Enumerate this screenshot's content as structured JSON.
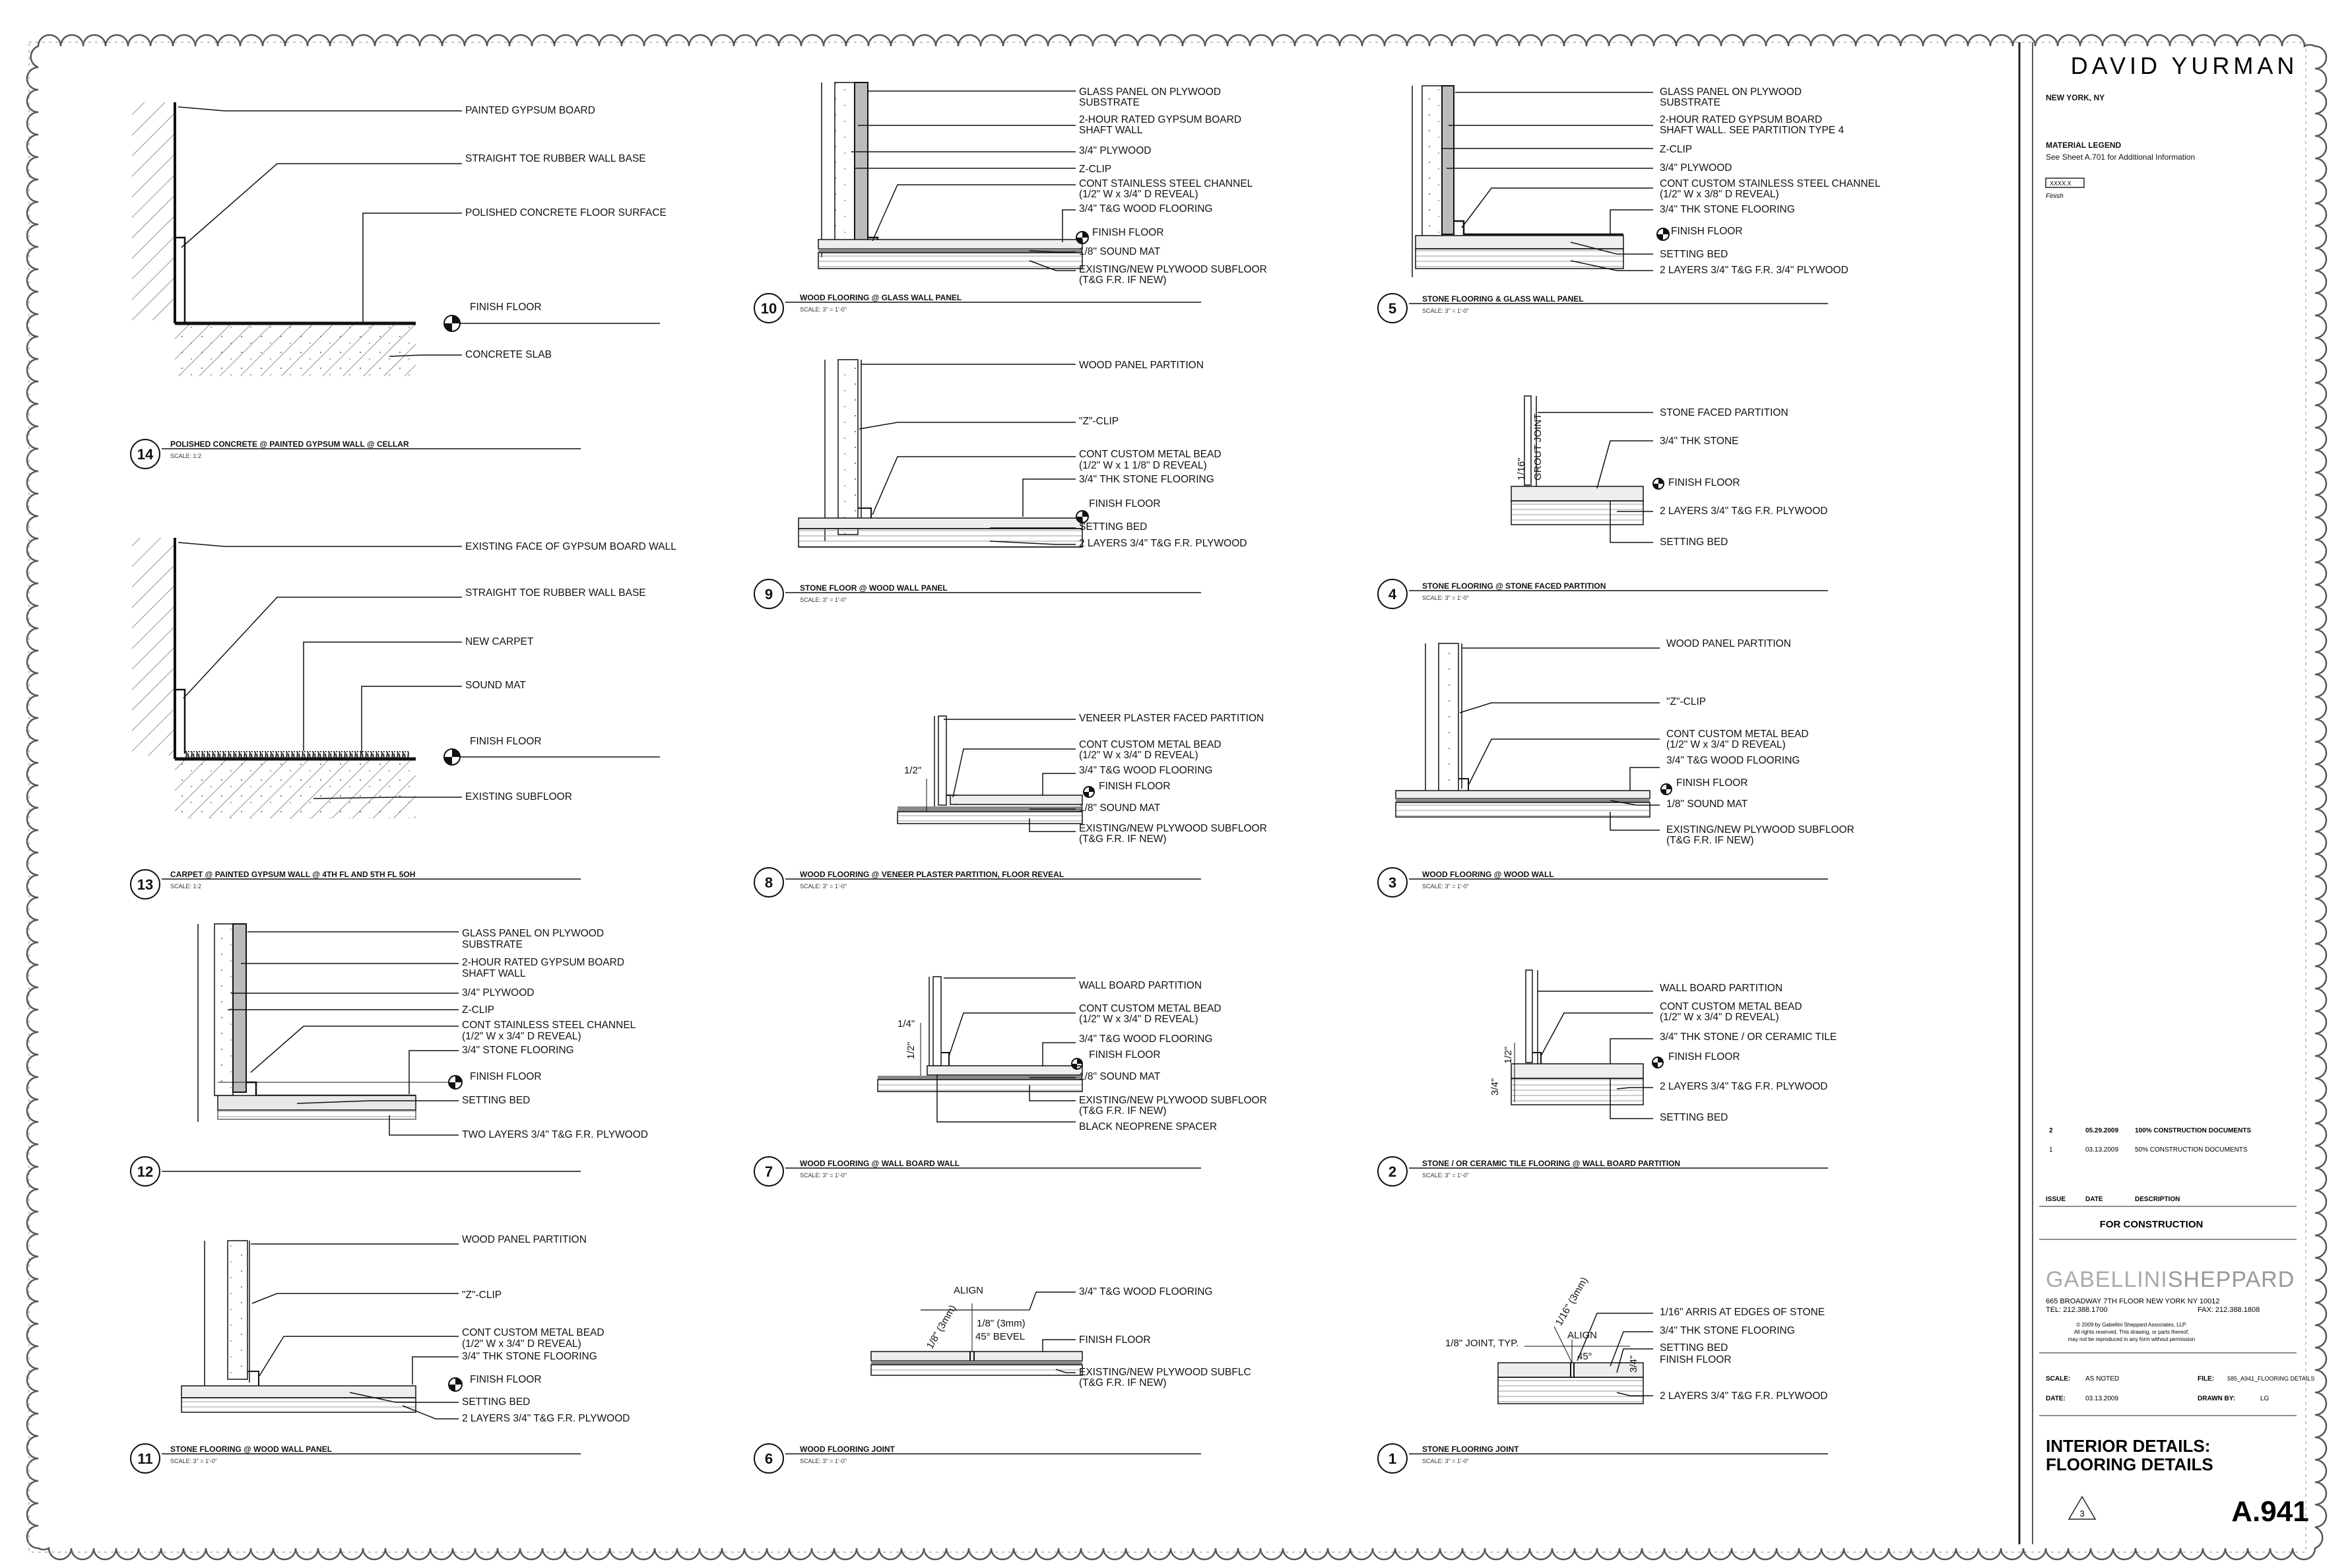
{
  "title_block": {
    "client": "DAVID YURMAN",
    "location": "NEW YORK, NY",
    "legend_title": "MATERIAL LEGEND",
    "legend_note": "See Sheet A.701 for Additional Information",
    "legend_tag": "XXXX.X",
    "legend_tag_caption": "Finish",
    "issues": [
      {
        "no": "2",
        "date": "05.29.2009",
        "desc": "100% CONSTRUCTION DOCUMENTS"
      },
      {
        "no": "1",
        "date": "03.13.2009",
        "desc": "50% CONSTRUCTION DOCUMENTS"
      }
    ],
    "issue_hdr": "ISSUE",
    "date_hdr": "DATE",
    "desc_hdr": "DESCRIPTION",
    "status": "FOR CONSTRUCTION",
    "firm_a": "GABELLINI",
    "firm_b": "SHEPPARD",
    "firm_addr": "665 BROADWAY  7TH FLOOR NEW YORK NY 10012",
    "firm_tel": "TEL: 212.388.1700",
    "firm_fax": "FAX: 212.388.1808",
    "copyright_1": "© 2009 by Gabellini Sheppard Associates, LLP.",
    "copyright_2": "All rights reserved. This drawing, or parts thereof,",
    "copyright_3": "may not be reproduced in any form without permission",
    "scale_label": "SCALE:",
    "scale_value": "AS NOTED",
    "date_label": "DATE:",
    "date_value": "03.13.2009",
    "file_label": "FILE:",
    "file_value": "585_A941_FLOORING DETAILS",
    "drawn_label": "DRAWN BY:",
    "drawn_value": "LG",
    "sheet_title_1": "INTERIOR DETAILS:",
    "sheet_title_2": "FLOORING DETAILS",
    "revision": "3",
    "sheet_number": "A.941"
  },
  "details": [
    {
      "num": "14",
      "title": "POLISHED CONCRETE @ PAINTED GYPSUM WALL @ CELLAR",
      "scale": "SCALE: 1:2",
      "labels": [
        "PAINTED GYPSUM BOARD",
        "STRAIGHT TOE RUBBER WALL BASE",
        "POLISHED CONCRETE FLOOR SURFACE",
        "FINISH FLOOR",
        "CONCRETE SLAB"
      ]
    },
    {
      "num": "13",
      "title": "CARPET @ PAINTED GYPSUM WALL @ 4TH FL AND 5TH FL 5OH",
      "scale": "SCALE: 1:2",
      "labels": [
        "EXISTING FACE OF  GYPSUM BOARD WALL",
        "STRAIGHT TOE RUBBER WALL BASE",
        "NEW CARPET",
        "SOUND MAT",
        "FINISH FLOOR",
        "EXISTING SUBFLOOR"
      ]
    },
    {
      "num": "12",
      "title": "",
      "scale": "",
      "labels": [
        "GLASS PANEL ON PLYWOOD",
        "SUBSTRATE",
        "2-HOUR RATED GYPSUM BOARD",
        "SHAFT WALL",
        "3/4\" PLYWOOD",
        "Z-CLIP",
        "CONT STAINLESS STEEL CHANNEL",
        "(1/2\" W x 3/4\" D REVEAL)",
        "3/4\" STONE FLOORING",
        "FINISH FLOOR",
        "SETTING BED",
        "TWO LAYERS 3/4\" T&G F.R. PLYWOOD"
      ]
    },
    {
      "num": "11",
      "title": "STONE FLOORING @ WOOD WALL PANEL",
      "scale": "SCALE: 3\" = 1'-0\"",
      "labels": [
        "WOOD PANEL PARTITION",
        "\"Z\"-CLIP",
        "CONT CUSTOM METAL BEAD",
        "(1/2\" W x 3/4\" D REVEAL)",
        "3/4\" THK STONE FLOORING",
        "FINISH FLOOR",
        "SETTING BED",
        "2 LAYERS 3/4\" T&G F.R. PLYWOOD"
      ]
    },
    {
      "num": "10",
      "title": "WOOD FLOORING @ GLASS WALL PANEL",
      "scale": "SCALE: 3\" = 1'-0\"",
      "labels": [
        "GLASS PANEL ON PLYWOOD",
        "SUBSTRATE",
        "2-HOUR RATED GYPSUM BOARD",
        "SHAFT WALL",
        "3/4\" PLYWOOD",
        "Z-CLIP",
        "CONT STAINLESS STEEL CHANNEL",
        "(1/2\" W x 3/4\" D REVEAL)",
        "3/4\" T&G WOOD FLOORING",
        "FINISH FLOOR",
        "1/8\" SOUND MAT",
        "EXISTING/NEW PLYWOOD SUBFLOOR",
        "(T&G F.R. IF NEW)"
      ]
    },
    {
      "num": "9",
      "title": "STONE FLOOR @ WOOD WALL PANEL",
      "scale": "SCALE: 3\" = 1'-0\"",
      "labels": [
        "WOOD PANEL PARTITION",
        "\"Z\"-CLIP",
        "CONT CUSTOM METAL BEAD",
        "(1/2\" W x 1 1/8\" D REVEAL)",
        "3/4\" THK STONE FLOORING",
        "FINISH FLOOR",
        "SETTING BED",
        "2 LAYERS 3/4\" T&G F.R. PLYWOOD"
      ]
    },
    {
      "num": "8",
      "title": "WOOD FLOORING @ VENEER PLASTER PARTITION, FLOOR REVEAL",
      "scale": "SCALE: 3\" = 1'-0\"",
      "labels": [
        "VENEER PLASTER FACED PARTITION",
        "CONT CUSTOM METAL BEAD",
        "(1/2\" W x 3/4\" D REVEAL)",
        "3/4\" T&G WOOD FLOORING",
        "FINISH FLOOR",
        "1/8\" SOUND MAT",
        "EXISTING/NEW PLYWOOD SUBFLOOR",
        "(T&G F.R. IF NEW)"
      ],
      "dims": [
        "1/2\""
      ]
    },
    {
      "num": "7",
      "title": "WOOD FLOORING @ WALL BOARD WALL",
      "scale": "SCALE: 3\" = 1'-0\"",
      "labels": [
        "WALL BOARD PARTITION",
        "CONT CUSTOM METAL BEAD",
        "(1/2\" W x 3/4\" D REVEAL)",
        "3/4\" T&G WOOD FLOORING",
        "FINISH FLOOR",
        "1/8\" SOUND MAT",
        "EXISTING/NEW PLYWOOD SUBFLOOR",
        "(T&G F.R. IF NEW)",
        "BLACK NEOPRENE SPACER"
      ],
      "dims": [
        "1/4\"",
        "1/2\""
      ]
    },
    {
      "num": "6",
      "title": "WOOD FLOORING JOINT",
      "scale": "SCALE: 3\" = 1'-0\"",
      "labels": [
        "3/4\" T&G WOOD FLOORING",
        "FINISH FLOOR",
        "EXISTING/NEW PLYWOOD SUBFLC",
        "(T&G F.R. IF NEW)"
      ],
      "dims": [
        "ALIGN",
        "1/8\" (3mm)",
        "1/8\" (3mm)",
        "45° BEVEL"
      ]
    },
    {
      "num": "5",
      "title": "STONE FLOORING & GLASS WALL PANEL",
      "scale": "SCALE: 3\" = 1'-0\"",
      "labels": [
        "GLASS PANEL ON PLYWOOD",
        "SUBSTRATE",
        "2-HOUR RATED GYPSUM BOARD",
        "SHAFT WALL. SEE PARTITION  TYPE 4",
        "Z-CLIP",
        "3/4\" PLYWOOD",
        "CONT CUSTOM STAINLESS STEEL CHANNEL",
        "(1/2\" W x 3/8\" D REVEAL)",
        "3/4\" THK STONE FLOORING",
        "FINISH FLOOR",
        "SETTING BED",
        "2 LAYERS 3/4\" T&G F.R. 3/4\" PLYWOOD"
      ]
    },
    {
      "num": "4",
      "title": "STONE FLOORING @ STONE FACED PARTITION",
      "scale": "SCALE: 3\" = 1'-0\"",
      "labels": [
        "STONE FACED PARTITION",
        "3/4\" THK STONE",
        "FINISH FLOOR",
        "2 LAYERS 3/4\" T&G F.R. PLYWOOD",
        "SETTING BED"
      ],
      "dims": [
        "1/16\"",
        "GROUT JOINT"
      ]
    },
    {
      "num": "3",
      "title": "WOOD FLOORING @ WOOD WALL",
      "scale": "SCALE: 3\" = 1'-0\"",
      "labels": [
        "WOOD PANEL PARTITION",
        "\"Z\"-CLIP",
        "CONT CUSTOM METAL BEAD",
        "(1/2\" W x 3/4\" D REVEAL)",
        "3/4\" T&G WOOD FLOORING",
        "FINISH FLOOR",
        "1/8\" SOUND MAT",
        "EXISTING/NEW PLYWOOD SUBFLOOR",
        "(T&G F.R. IF NEW)"
      ]
    },
    {
      "num": "2",
      "title": "STONE / OR CERAMIC TILE FLOORING @ WALL BOARD PARTITION",
      "scale": "SCALE: 3\" = 1'-0\"",
      "labels": [
        "WALL BOARD PARTITION",
        "CONT CUSTOM METAL BEAD",
        "(1/2\" W x 3/4\" D REVEAL)",
        "3/4\" THK STONE / OR CERAMIC TILE",
        "FINISH FLOOR",
        "2 LAYERS 3/4\" T&G F.R. PLYWOOD",
        "SETTING BED"
      ],
      "dims": [
        "1/2\"",
        "3/4\""
      ]
    },
    {
      "num": "1",
      "title": "STONE FLOORING JOINT",
      "scale": "SCALE: 3\" = 1'-0\"",
      "labels": [
        "1/16\" ARRIS AT EDGES OF STONE",
        "3/4\" THK STONE FLOORING",
        "SETTING BED",
        "FINISH FLOOR",
        "2 LAYERS 3/4\" T&G F.R. PLYWOOD"
      ],
      "dims": [
        "1/8\" JOINT, TYP.",
        "1/16\" (3mm)",
        "ALIGN",
        "45°",
        "3/4\""
      ]
    }
  ]
}
